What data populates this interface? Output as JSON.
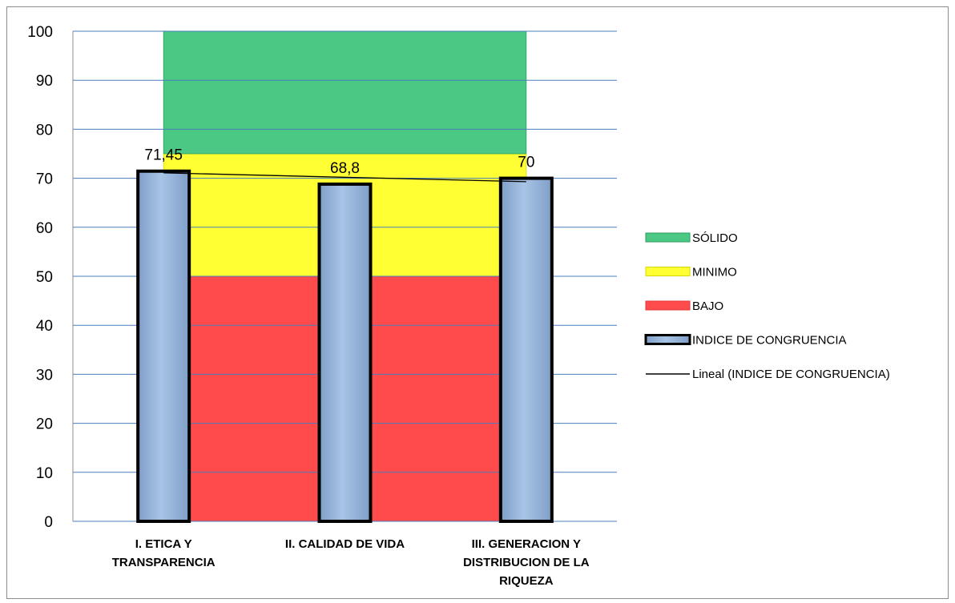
{
  "chart_data": {
    "type": "bar",
    "title": "",
    "xlabel": "",
    "ylabel": "",
    "ylim": [
      0,
      100
    ],
    "yticks": [
      "0",
      "10",
      "20",
      "30",
      "40",
      "50",
      "60",
      "70",
      "80",
      "90",
      "100"
    ],
    "grid": true,
    "categories": [
      "I. ETICA Y TRANSPARENCIA",
      "II. CALIDAD DE VIDA",
      "III. GENERACION Y DISTRIBUCION DE LA RIQUEZA"
    ],
    "category_lines": [
      [
        "I. ETICA Y",
        "TRANSPARENCIA"
      ],
      [
        "II. CALIDAD DE VIDA"
      ],
      [
        "III. GENERACION Y",
        "DISTRIBUCION DE LA",
        "RIQUEZA"
      ]
    ],
    "bands": [
      {
        "name": "BAJO",
        "from": 0,
        "to": 50,
        "color": "#ff4b4b"
      },
      {
        "name": "MINIMO",
        "from": 50,
        "to": 75,
        "color": "#ffff33"
      },
      {
        "name": "SÓLIDO",
        "from": 75,
        "to": 100,
        "color": "#4cc885"
      }
    ],
    "series": [
      {
        "name": "INDICE DE CONGRUENCIA",
        "values": [
          71.45,
          68.8,
          70
        ],
        "data_labels": [
          "71,45",
          "68,8",
          "70"
        ],
        "color": "#9ebce0"
      }
    ],
    "trendline": {
      "name": "Lineal (INDICE DE CONGRUENCIA)",
      "start": 71.1,
      "end": 69.3
    },
    "legend": {
      "position": "right",
      "items": [
        "SÓLIDO",
        "MINIMO",
        "BAJO",
        "INDICE DE CONGRUENCIA",
        "Lineal (INDICE DE CONGRUENCIA)"
      ]
    }
  }
}
